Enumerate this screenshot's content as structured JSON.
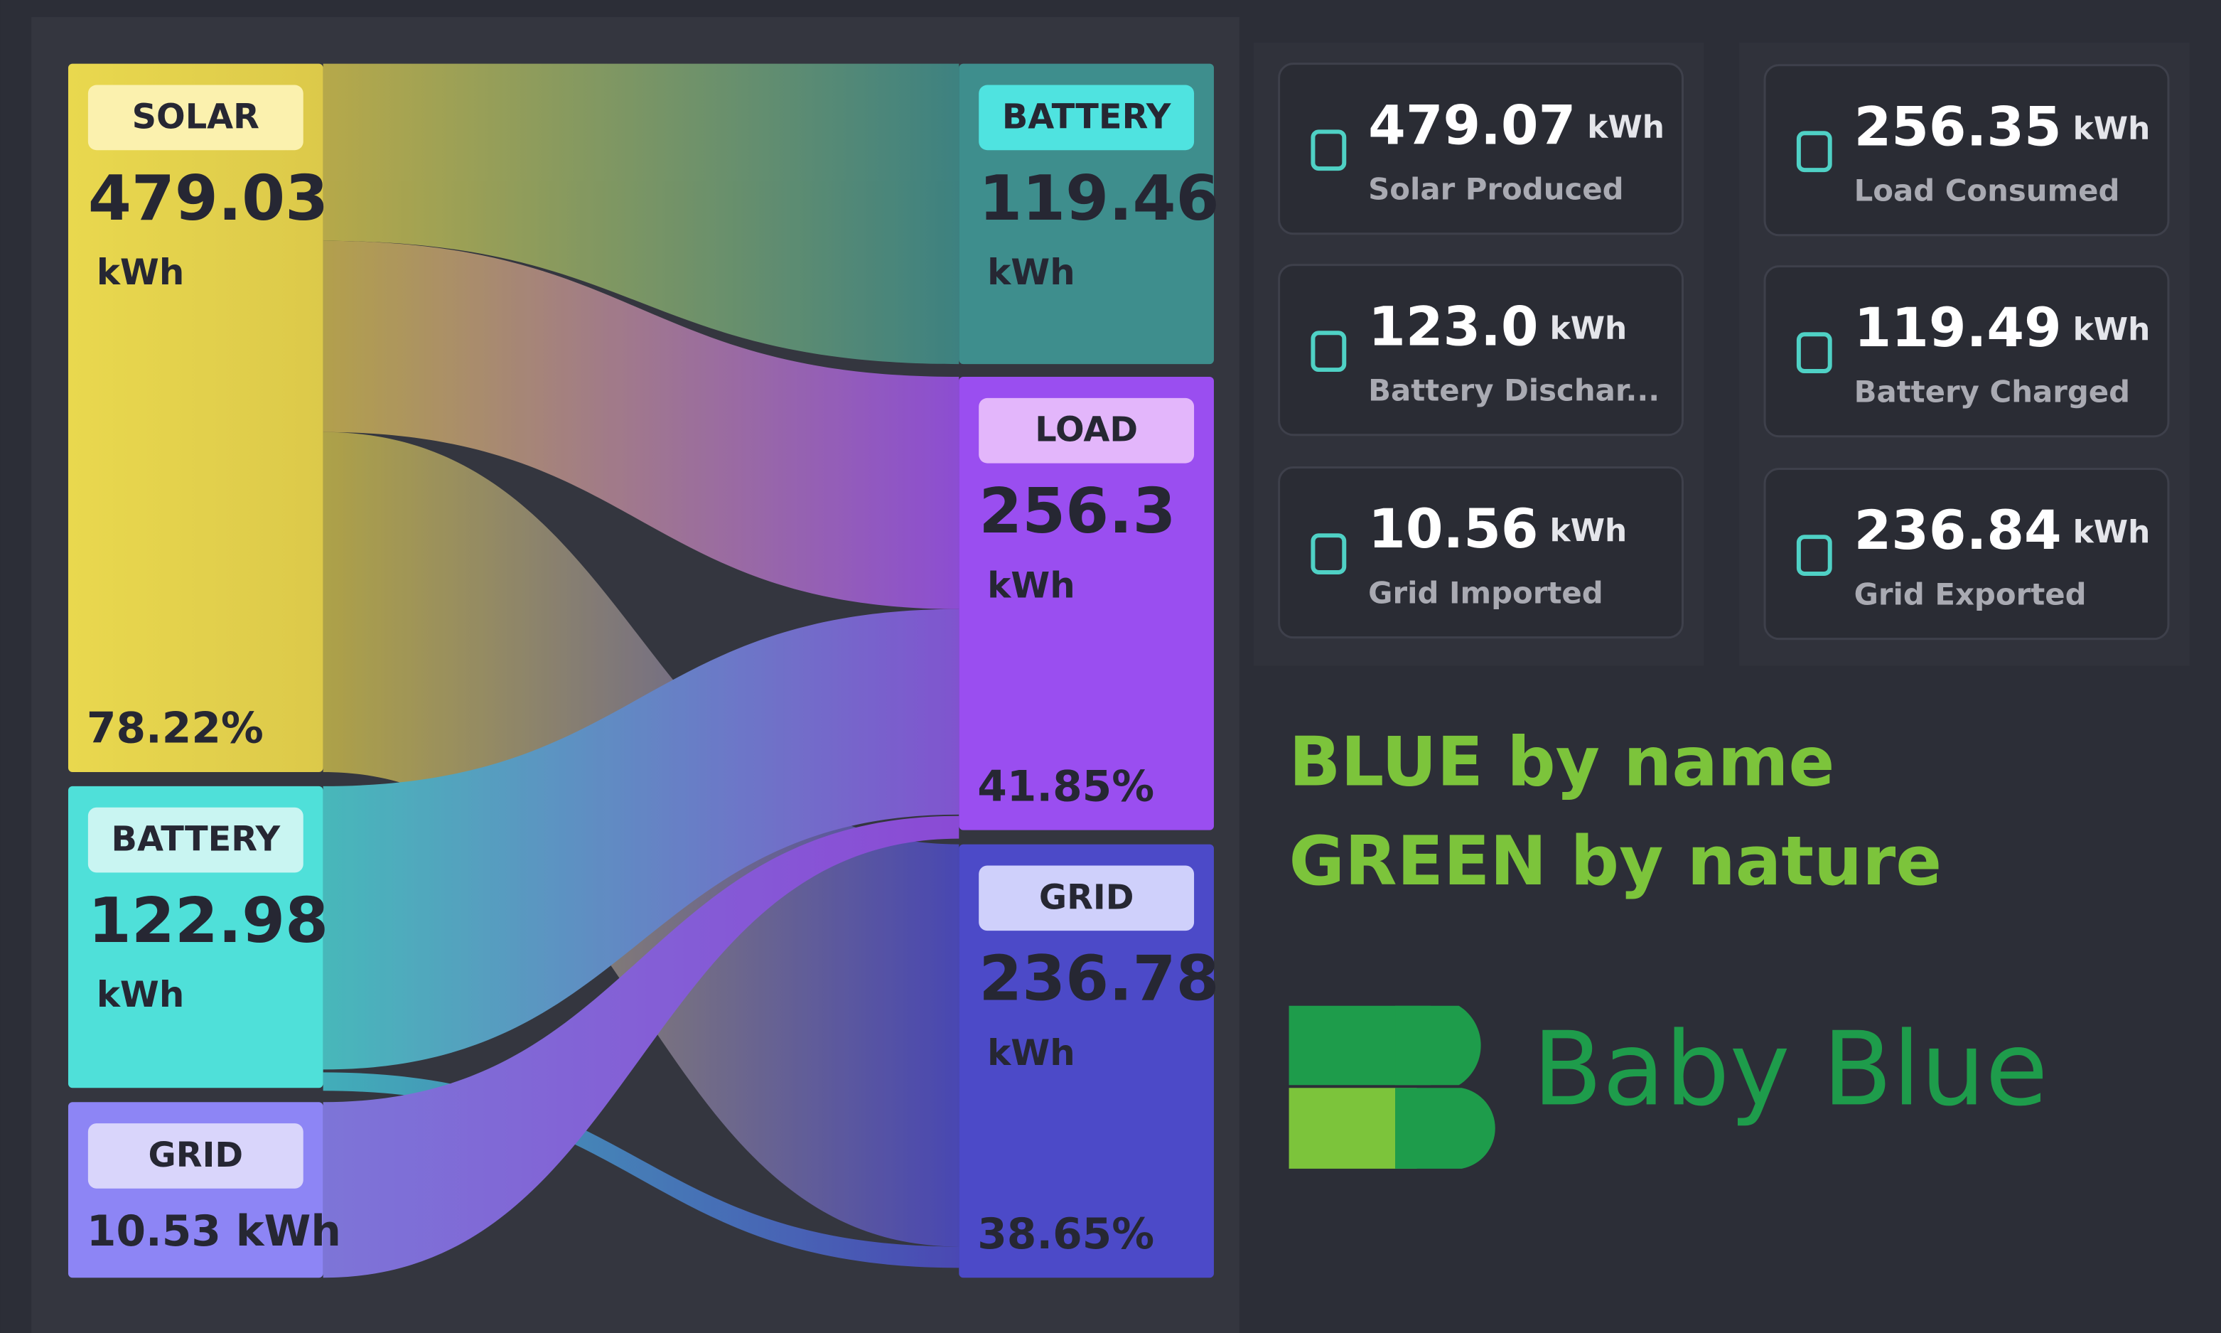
{
  "sankey": {
    "sources": [
      {
        "label": "SOLAR",
        "value": "479.03",
        "unit": "kWh",
        "percent": "78.22%"
      },
      {
        "label": "BATTERY",
        "value": "122.98",
        "unit": "kWh"
      },
      {
        "label": "GRID",
        "value": "10.53 kWh"
      }
    ],
    "targets": [
      {
        "label": "BATTERY",
        "value": "119.46",
        "unit": "kWh"
      },
      {
        "label": "LOAD",
        "value": "256.3",
        "unit": "kWh",
        "percent": "41.85%"
      },
      {
        "label": "GRID",
        "value": "236.78",
        "unit": "kWh",
        "percent": "38.65%"
      }
    ]
  },
  "cards": [
    {
      "value": "479.07",
      "unit": "kWh",
      "label": "Solar Produced"
    },
    {
      "value": "256.35",
      "unit": "kWh",
      "label": "Load Consumed"
    },
    {
      "value": "123.0",
      "unit": "kWh",
      "label": "Battery Dischar..."
    },
    {
      "value": "119.49",
      "unit": "kWh",
      "label": "Battery Charged"
    },
    {
      "value": "10.56",
      "unit": "kWh",
      "label": "Grid Imported"
    },
    {
      "value": "236.84",
      "unit": "kWh",
      "label": "Grid Exported"
    }
  ],
  "tagline": [
    "BLUE by name",
    "GREEN by nature"
  ],
  "brand": "Baby Blue"
}
